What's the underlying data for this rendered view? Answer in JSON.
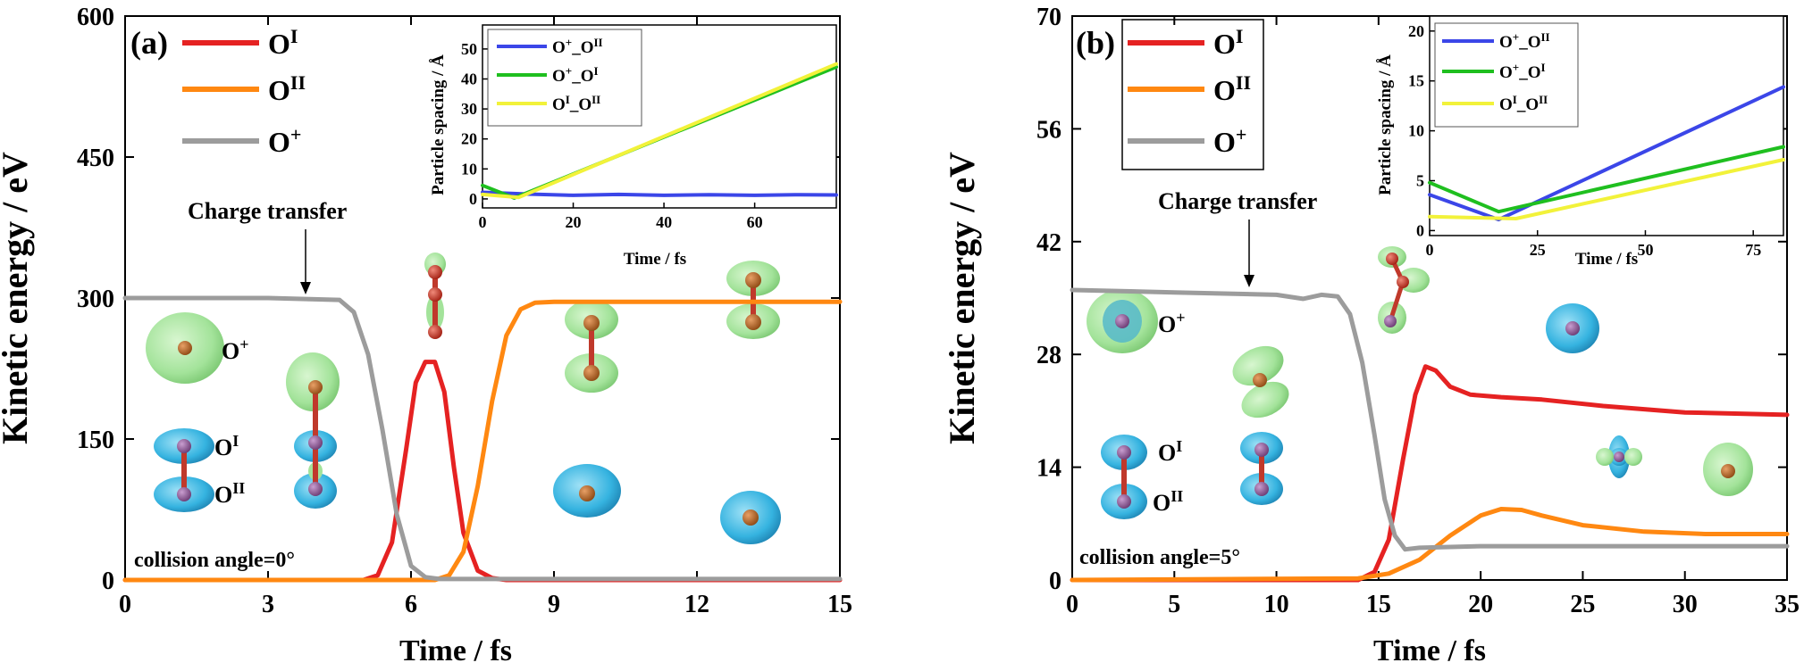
{
  "colors": {
    "O_I": "#e52222",
    "O_II": "#ff8811",
    "O_plus": "#9c9c9c",
    "inset_blue": "#3b46e8",
    "inset_green": "#1fbf1f",
    "inset_yellow": "#f2f23a",
    "isosurface_green": "#a3e39a",
    "isosurface_blue": "#35b3e0",
    "atom_red": "#c0392b",
    "atom_purple": "#7a4a82",
    "atom_orange": "#b5651d"
  },
  "chart_data": [
    {
      "type": "line",
      "panel_label": "(a)",
      "xlabel": "Time / fs",
      "ylabel": "Kinetic energy / eV",
      "xlim": [
        0,
        15
      ],
      "ylim": [
        0,
        600
      ],
      "xticks": [
        0,
        3,
        6,
        9,
        12,
        15
      ],
      "yticks": [
        0,
        150,
        300,
        450,
        600
      ],
      "legend": {
        "placement": "top-left",
        "entries": [
          "O^I",
          "O^II",
          "O^+"
        ]
      },
      "series": [
        {
          "name": "O^I",
          "color_key": "O_I",
          "x": [
            0,
            5,
            5.3,
            5.6,
            5.9,
            6.1,
            6.3,
            6.5,
            6.7,
            6.9,
            7.1,
            7.4,
            7.7,
            8,
            15
          ],
          "y": [
            0,
            0,
            5,
            40,
            140,
            210,
            232,
            232,
            200,
            120,
            50,
            10,
            2,
            0,
            0
          ]
        },
        {
          "name": "O^II",
          "color_key": "O_II",
          "x": [
            0,
            6.5,
            6.8,
            7.1,
            7.4,
            7.7,
            8.0,
            8.3,
            8.6,
            9.0,
            15
          ],
          "y": [
            0,
            0,
            5,
            30,
            100,
            190,
            260,
            288,
            295,
            296,
            296
          ]
        },
        {
          "name": "O^+",
          "color_key": "O_plus",
          "x": [
            0,
            3,
            4.5,
            4.8,
            5.1,
            5.4,
            5.7,
            6.0,
            6.3,
            6.6,
            7.0,
            15
          ],
          "y": [
            300,
            300,
            298,
            285,
            240,
            160,
            70,
            15,
            3,
            1,
            1,
            1
          ]
        }
      ],
      "annotations": {
        "charge_transfer": "Charge transfer",
        "collision_angle": "collision angle=0°",
        "O_plus_label": "O+",
        "O_I_label": "OI",
        "O_II_label": "OII"
      },
      "inset": {
        "xlabel": "Time / fs",
        "ylabel": "Particle spacing / Å",
        "xlim": [
          0,
          78
        ],
        "ylim": [
          -3,
          58
        ],
        "xticks": [
          0,
          20,
          40,
          60
        ],
        "yticks": [
          0,
          10,
          20,
          30,
          40,
          50
        ],
        "legend": [
          "O+_OII",
          "O+_OI",
          "OI_OII"
        ],
        "series": [
          {
            "name": "O+_OII",
            "color_key": "inset_blue",
            "x": [
              0,
              10,
              20,
              30,
              40,
              50,
              60,
              70,
              78
            ],
            "y": [
              2.2,
              1.6,
              1.2,
              1.5,
              1.2,
              1.4,
              1.2,
              1.4,
              1.3
            ]
          },
          {
            "name": "O+_OI",
            "color_key": "inset_green",
            "x": [
              0,
              7,
              78
            ],
            "y": [
              4.5,
              0.3,
              44
            ]
          },
          {
            "name": "OI_OII",
            "color_key": "inset_yellow",
            "x": [
              0,
              8,
              78
            ],
            "y": [
              1.5,
              0.5,
              45
            ]
          }
        ]
      }
    },
    {
      "type": "line",
      "panel_label": "(b)",
      "xlabel": "Time / fs",
      "ylabel": "Kinetic energy / eV",
      "xlim": [
        0,
        35
      ],
      "ylim": [
        0,
        70
      ],
      "xticks": [
        0,
        5,
        10,
        15,
        20,
        25,
        30,
        35
      ],
      "yticks": [
        0,
        14,
        28,
        42,
        56,
        70
      ],
      "legend": {
        "placement": "top-left",
        "entries": [
          "O^I",
          "O^II",
          "O^+"
        ]
      },
      "series": [
        {
          "name": "O^I",
          "color_key": "O_I",
          "x": [
            0,
            14,
            14.8,
            15.5,
            16.2,
            16.8,
            17.3,
            17.8,
            18.5,
            19.5,
            21,
            23,
            26,
            30,
            35
          ],
          "y": [
            0,
            0,
            1,
            5,
            15,
            23,
            26.5,
            26,
            24,
            23,
            22.7,
            22.4,
            21.6,
            20.8,
            20.5
          ]
        },
        {
          "name": "O^II",
          "color_key": "O_II",
          "x": [
            0,
            14,
            15.5,
            17,
            18.5,
            20,
            21,
            22,
            23,
            25,
            28,
            31,
            35
          ],
          "y": [
            0,
            0.2,
            0.8,
            2.5,
            5.5,
            8,
            8.8,
            8.7,
            8,
            6.8,
            6,
            5.7,
            5.7
          ]
        },
        {
          "name": "O^+",
          "color_key": "O_plus",
          "x": [
            0,
            5,
            10,
            11.3,
            12.2,
            13,
            13.6,
            14.2,
            14.8,
            15.3,
            15.8,
            16.3,
            17,
            20,
            25,
            35
          ],
          "y": [
            36,
            35.7,
            35.4,
            34.9,
            35.4,
            35.2,
            33,
            27,
            18,
            10,
            5.5,
            3.8,
            4,
            4.2,
            4.2,
            4.2
          ]
        }
      ],
      "annotations": {
        "charge_transfer": "Charge transfer",
        "collision_angle": "collision angle=5°",
        "O_plus_label": "O+",
        "O_I_label": "OI",
        "O_II_label": "OII"
      },
      "inset": {
        "xlabel": "Time / fs",
        "ylabel": "Particle spacing / Å",
        "xlim": [
          0,
          82
        ],
        "ylim": [
          -0.5,
          21.5
        ],
        "xticks": [
          0,
          25,
          50,
          75
        ],
        "yticks": [
          0,
          5,
          10,
          15,
          20
        ],
        "legend": [
          "O+_OII",
          "O+_OI",
          "OI_OII"
        ],
        "series": [
          {
            "name": "O+_OII",
            "color_key": "inset_blue",
            "x": [
              0,
              16,
              82
            ],
            "y": [
              3.6,
              1.1,
              14.4
            ]
          },
          {
            "name": "O+_OI",
            "color_key": "inset_green",
            "x": [
              0,
              16,
              82
            ],
            "y": [
              4.8,
              1.9,
              8.4
            ]
          },
          {
            "name": "OI_OII",
            "color_key": "inset_yellow",
            "x": [
              0,
              20,
              82
            ],
            "y": [
              1.4,
              1.2,
              7.1
            ]
          }
        ]
      }
    }
  ]
}
